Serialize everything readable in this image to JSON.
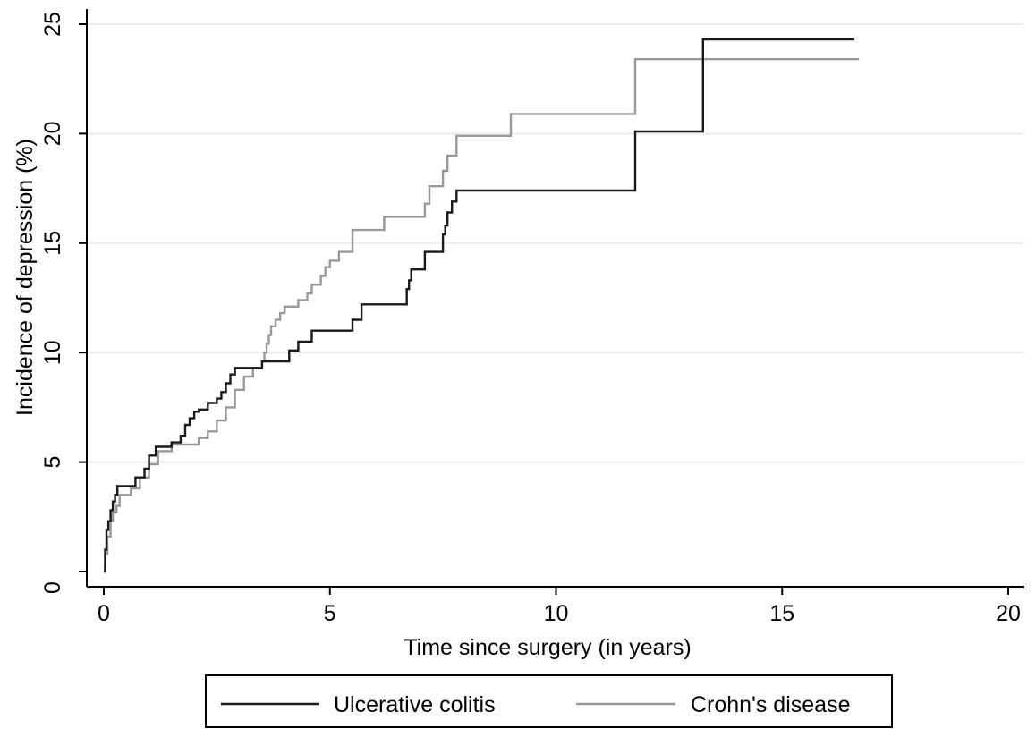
{
  "chart_data": {
    "type": "line",
    "xlabel": "Time since surgery (in years)",
    "ylabel": "Incidence of depression (%)",
    "xlim": [
      0,
      20
    ],
    "ylim": [
      0,
      25
    ],
    "xticks": [
      "0",
      "5",
      "10",
      "15",
      "20"
    ],
    "yticks": [
      "0",
      "5",
      "10",
      "15",
      "20",
      "25"
    ],
    "grid": "horizontal",
    "legend_position": "bottom",
    "series": [
      {
        "name": "Ulcerative colitis",
        "color": "#1a1a1a",
        "step": true,
        "x": [
          0,
          0.03,
          0.06,
          0.1,
          0.15,
          0.2,
          0.25,
          0.3,
          0.6,
          0.7,
          0.9,
          1.0,
          1.15,
          1.5,
          1.7,
          1.8,
          1.9,
          2.0,
          2.1,
          2.3,
          2.5,
          2.6,
          2.7,
          2.8,
          2.9,
          3.5,
          4.1,
          4.3,
          4.6,
          5.5,
          5.7,
          6.7,
          6.75,
          6.8,
          7.1,
          7.5,
          7.55,
          7.6,
          7.7,
          7.8,
          11.75,
          13.25,
          16.6
        ],
        "values": [
          0,
          1.0,
          1.9,
          2.3,
          2.8,
          3.2,
          3.5,
          3.9,
          3.9,
          4.3,
          4.7,
          5.3,
          5.7,
          5.9,
          6.2,
          6.7,
          7.0,
          7.3,
          7.4,
          7.7,
          7.9,
          8.2,
          8.6,
          9.0,
          9.3,
          9.6,
          10.1,
          10.5,
          11.0,
          11.5,
          12.2,
          12.9,
          13.3,
          13.8,
          14.6,
          15.4,
          15.8,
          16.4,
          16.9,
          17.4,
          20.1,
          24.3,
          24.3
        ]
      },
      {
        "name": "Crohn's disease",
        "color": "#999999",
        "step": true,
        "x": [
          0,
          0.03,
          0.08,
          0.15,
          0.2,
          0.28,
          0.35,
          0.6,
          0.8,
          1.0,
          1.2,
          1.5,
          2.1,
          2.3,
          2.5,
          2.7,
          2.9,
          3.1,
          3.3,
          3.5,
          3.55,
          3.6,
          3.65,
          3.7,
          3.8,
          3.9,
          4.0,
          4.3,
          4.5,
          4.6,
          4.8,
          4.9,
          5.0,
          5.2,
          5.5,
          6.2,
          7.1,
          7.2,
          7.5,
          7.6,
          7.8,
          9.0,
          11.75,
          16.7
        ],
        "values": [
          0,
          0.8,
          1.6,
          2.3,
          2.7,
          3.0,
          3.5,
          3.8,
          4.3,
          4.9,
          5.5,
          5.8,
          6.1,
          6.4,
          6.9,
          7.5,
          8.3,
          8.9,
          9.3,
          9.6,
          10.0,
          10.4,
          10.8,
          11.2,
          11.5,
          11.8,
          12.1,
          12.4,
          12.7,
          13.1,
          13.5,
          13.9,
          14.2,
          14.6,
          15.6,
          16.2,
          16.8,
          17.6,
          18.3,
          19.0,
          19.9,
          20.9,
          23.4,
          23.4
        ]
      }
    ]
  }
}
